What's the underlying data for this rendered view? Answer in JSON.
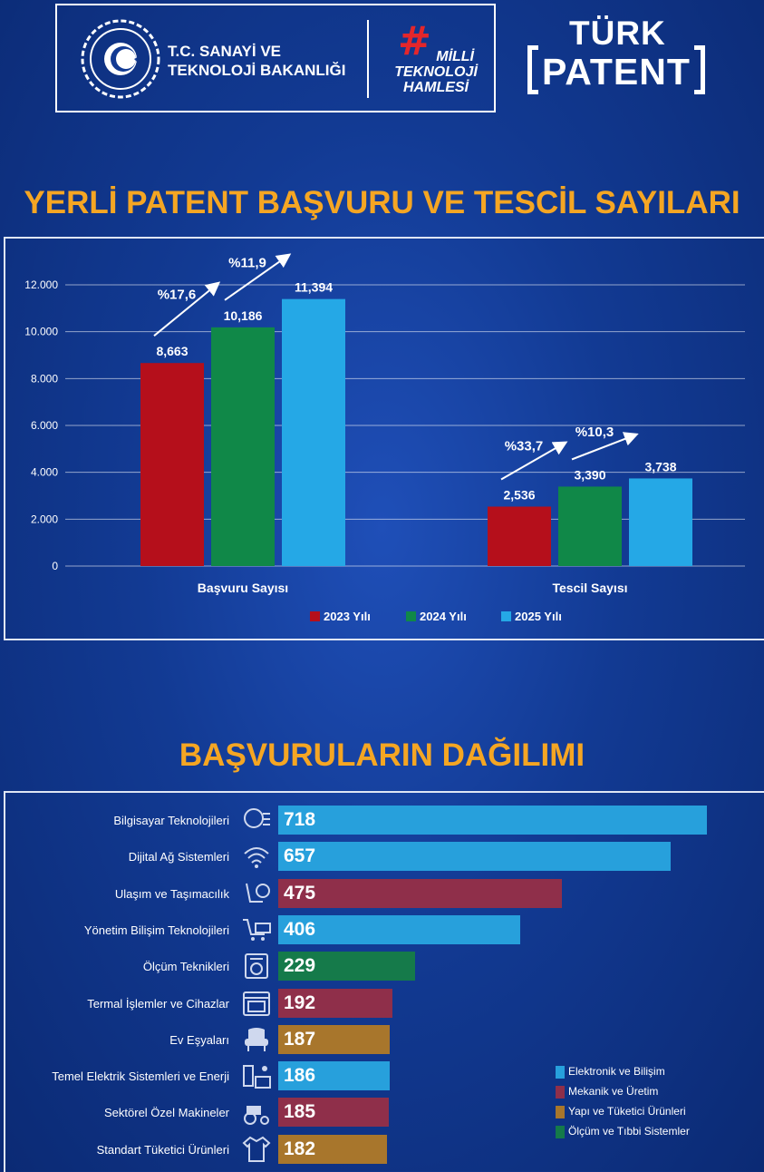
{
  "header": {
    "ministry_name_line1": "T.C. SANAYİ VE",
    "ministry_name_line2": "TEKNOLOJİ BAKANLIĞI",
    "mth_hash": "#",
    "mth_line1": "MİLLİ",
    "mth_line2": "TEKNOLOJİ",
    "mth_line3": "HAMLESİ",
    "tp_line1": "TÜRK",
    "tp_line2": "PATENT"
  },
  "colors": {
    "y2023": "#b50f1b",
    "y2024": "#108848",
    "y2025": "#25a8e6",
    "elektronik": "#27a0dc",
    "mekanik": "#8f2f4a",
    "yapi": "#a8762c",
    "olcum": "#157a4a",
    "title": "#f5a623"
  },
  "chart_data": [
    {
      "type": "bar",
      "title": "YERLİ PATENT BAŞVURU VE TESCİL SAYILARI",
      "categories": [
        "Başvuru Sayısı",
        "Tescil Sayısı"
      ],
      "series": [
        {
          "name": "2023 Yılı",
          "values": [
            8663,
            2536
          ],
          "labels": [
            "8,663",
            "2,536"
          ]
        },
        {
          "name": "2024 Yılı",
          "values": [
            10186,
            3390
          ],
          "labels": [
            "10,186",
            "3,390"
          ]
        },
        {
          "name": "2025 Yılı",
          "values": [
            11394,
            3738
          ],
          "labels": [
            "11,394",
            "3,738"
          ]
        }
      ],
      "ylim": [
        0,
        12000
      ],
      "yticks": [
        0,
        2000,
        4000,
        6000,
        8000,
        10000,
        12000
      ],
      "ytick_labels": [
        "0",
        "2.000",
        "4.000",
        "6.000",
        "8.000",
        "10.000",
        "12.000"
      ],
      "annotations": [
        {
          "category": 0,
          "from": "2023 Yılı",
          "to": "2024 Yılı",
          "text": "%17,6"
        },
        {
          "category": 0,
          "from": "2024 Yılı",
          "to": "2025 Yılı",
          "text": "%11,9"
        },
        {
          "category": 1,
          "from": "2023 Yılı",
          "to": "2024 Yılı",
          "text": "%33,7"
        },
        {
          "category": 1,
          "from": "2024 Yılı",
          "to": "2025 Yılı",
          "text": "%10,3"
        }
      ],
      "grid": true,
      "legend": "bottom-center"
    },
    {
      "type": "bar",
      "orientation": "horizontal",
      "title": "BAŞVURULARIN DAĞILIMI",
      "categories": [
        "Bilgisayar Teknolojileri",
        "Dijital Ağ Sistemleri",
        "Ulaşım ve Taşımacılık",
        "Yönetim Bilişim Teknolojileri",
        "Ölçüm Teknikleri",
        "Termal İşlemler ve Cihazlar",
        "Ev Eşyaları",
        "Temel Elektrik Sistemleri ve Enerji",
        "Sektörel Özel Makineler",
        "Standart Tüketici Ürünleri"
      ],
      "values": [
        718,
        657,
        475,
        406,
        229,
        192,
        187,
        186,
        185,
        182
      ],
      "groups": [
        "elektronik",
        "elektronik",
        "mekanik",
        "elektronik",
        "olcum",
        "mekanik",
        "yapi",
        "elektronik",
        "mekanik",
        "yapi"
      ],
      "icons": [
        "brain-chip-icon",
        "wifi-icon",
        "car-seat-wheel-icon",
        "shopping-cart-icon",
        "meter-icon",
        "oven-icon",
        "armchair-icon",
        "battery-solar-icon",
        "tractor-icon",
        "clothes-icon"
      ],
      "legend_entries": [
        {
          "key": "elektronik",
          "label": "Elektronik ve Bilişim"
        },
        {
          "key": "mekanik",
          "label": "Mekanik ve Üretim"
        },
        {
          "key": "yapi",
          "label": "Yapı ve Tüketici Ürünleri"
        },
        {
          "key": "olcum",
          "label": "Ölçüm ve Tıbbi Sistemler"
        }
      ],
      "legend": "bottom-right"
    }
  ]
}
